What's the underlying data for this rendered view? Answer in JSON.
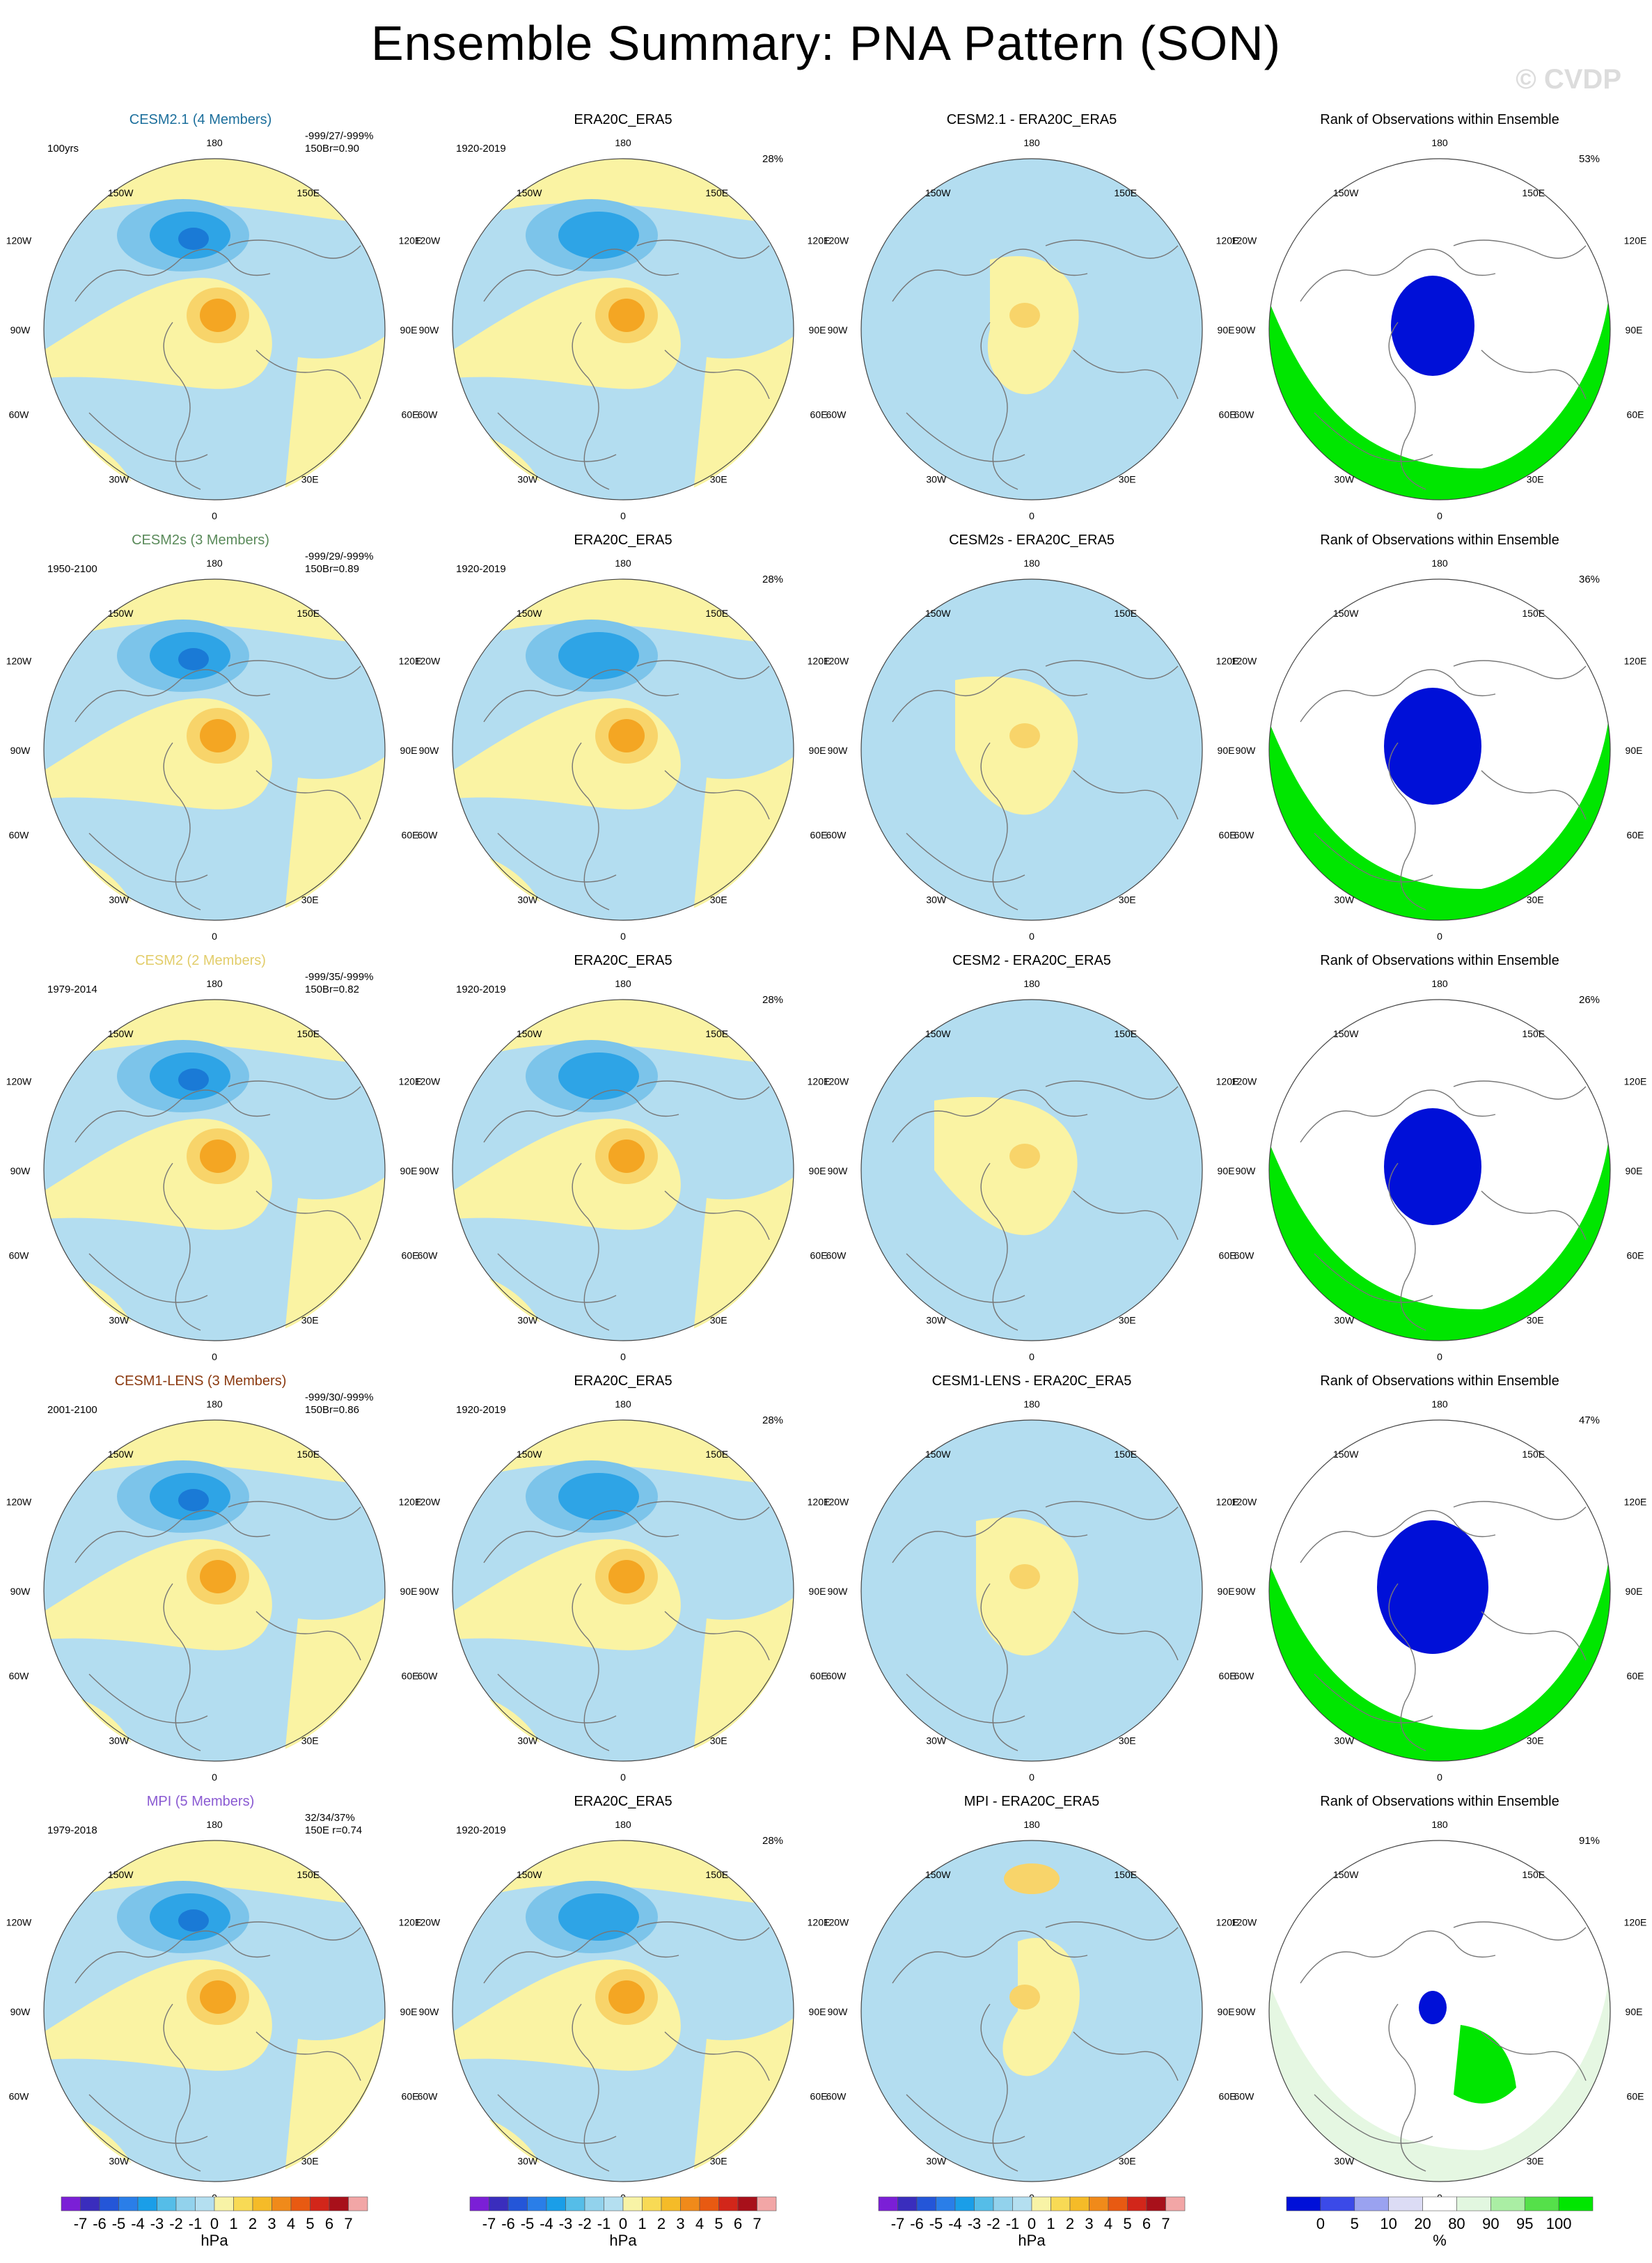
{
  "title": "Ensemble Summary: PNA Pattern (SON)",
  "copyright": "© CVDP",
  "longitude_labels": {
    "top": "180",
    "bottom": "0",
    "upper_left": "150W",
    "upper_right": "150E",
    "left_upper": "120W",
    "right_upper": "120E",
    "left": "90W",
    "right": "90E",
    "left_lower": "60W",
    "right_lower": "60E",
    "lower_left": "30W",
    "lower_right": "30E"
  },
  "rows": [
    {
      "model": "CESM2.1 (4 Members)",
      "model_color": "#1c6f9c",
      "period": "100yrs",
      "stats": "-999/27/-999%",
      "stats2": "150Br=0.90",
      "obs_title": "ERA20C_ERA5",
      "obs_period": "1920-2019",
      "obs_pct": "28%",
      "diff_title": "CESM2.1 - ERA20C_ERA5",
      "rank_title": "Rank of Observations within Ensemble",
      "rank_pct": "53%"
    },
    {
      "model": "CESM2s (3 Members)",
      "model_color": "#5a8a5a",
      "period": "1950-2100",
      "stats": "-999/29/-999%",
      "stats2": "150Br=0.89",
      "obs_title": "ERA20C_ERA5",
      "obs_period": "1920-2019",
      "obs_pct": "28%",
      "diff_title": "CESM2s - ERA20C_ERA5",
      "rank_title": "Rank of Observations within Ensemble",
      "rank_pct": "36%"
    },
    {
      "model": "CESM2 (2 Members)",
      "model_color": "#e2cd6a",
      "period": "1979-2014",
      "stats": "-999/35/-999%",
      "stats2": "150Br=0.82",
      "obs_title": "ERA20C_ERA5",
      "obs_period": "1920-2019",
      "obs_pct": "28%",
      "diff_title": "CESM2 - ERA20C_ERA5",
      "rank_title": "Rank of Observations within Ensemble",
      "rank_pct": "26%"
    },
    {
      "model": "CESM1-LENS (3 Members)",
      "model_color": "#8b3a10",
      "period": "2001-2100",
      "stats": "-999/30/-999%",
      "stats2": "150Br=0.86",
      "obs_title": "ERA20C_ERA5",
      "obs_period": "1920-2019",
      "obs_pct": "28%",
      "diff_title": "CESM1-LENS - ERA20C_ERA5",
      "rank_title": "Rank of Observations within Ensemble",
      "rank_pct": "47%"
    },
    {
      "model": "MPI (5 Members)",
      "model_color": "#8a5ad2",
      "period": "1979-2018",
      "stats": "32/34/37%",
      "stats2": "150E   r=0.74",
      "obs_title": "ERA20C_ERA5",
      "obs_period": "1920-2019",
      "obs_pct": "28%",
      "diff_title": "MPI - ERA20C_ERA5",
      "rank_title": "Rank of Observations within Ensemble",
      "rank_pct": "91%"
    }
  ],
  "colorbar_hpa": {
    "labels": [
      "-7",
      "-6",
      "-5",
      "-4",
      "-3",
      "-2",
      "-1",
      "0",
      "1",
      "2",
      "3",
      "4",
      "5",
      "6",
      "7"
    ],
    "colors": [
      "#7b1fd6",
      "#3a2dbd",
      "#2456d8",
      "#2a7ee8",
      "#1a9ee8",
      "#55bde8",
      "#92d2ec",
      "#b4dff0",
      "#f8f3a6",
      "#f8da55",
      "#f5bb28",
      "#f08a1a",
      "#e85a12",
      "#d2261a",
      "#a8101a",
      "#f2a6a6"
    ],
    "unit": "hPa"
  },
  "colorbar_pct": {
    "labels": [
      "0",
      "5",
      "10",
      "20",
      "80",
      "90",
      "95",
      "100"
    ],
    "colors": [
      "#0010d8",
      "#3b4ae8",
      "#9aa2f0",
      "#dcdcf5",
      "#ffffff",
      "#e2f7e0",
      "#aaeea4",
      "#55e04a",
      "#00e600"
    ],
    "unit": "%"
  }
}
